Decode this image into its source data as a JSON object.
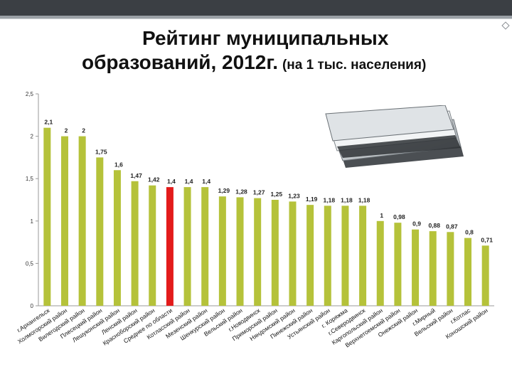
{
  "title_line1": "Рейтинг муниципальных",
  "title_line2": "образований, 2012г.",
  "subtitle": "(на 1 тыс. населения)",
  "colors": {
    "bar": "#b5c23a",
    "highlight": "#e31b1b",
    "header": "#3b3f44"
  },
  "chart_data": {
    "type": "bar",
    "title": "Рейтинг муниципальных образований, 2012г. (на 1 тыс. населения)",
    "xlabel": "",
    "ylabel": "",
    "ylim": [
      0,
      2.5
    ],
    "yticks": [
      "0",
      "0,5",
      "1",
      "1,5",
      "2",
      "2,5"
    ],
    "ytick_values": [
      0,
      0.5,
      1,
      1.5,
      2,
      2.5
    ],
    "grid": false,
    "highlight_index": 7,
    "categories": [
      "г.Архангельск",
      "Холмогорский район",
      "Вилегодский район",
      "Плесецкий район",
      "Лешуконский район",
      "Ленский район",
      "Красноборский район",
      "Среднее по области",
      "Котласский район",
      "Мезенский район",
      "Шенкурский район",
      "Вельский район",
      "г.Новодвинск",
      "Приморский район",
      "Няндомский район",
      "Пинежский район",
      "Устьянский район",
      "г. Коряжма",
      "г.Северодвинск",
      "Каргопольский район",
      "Верхнетоемский район",
      "Онежский район",
      "г.Мирный",
      "Вельский район",
      "г.Котлас",
      "Коношский район"
    ],
    "values": [
      2.1,
      2,
      2,
      1.75,
      1.6,
      1.47,
      1.42,
      1.4,
      1.4,
      1.4,
      1.29,
      1.28,
      1.27,
      1.25,
      1.23,
      1.19,
      1.18,
      1.18,
      1.18,
      1,
      0.98,
      0.9,
      0.88,
      0.87,
      0.8,
      0.71
    ],
    "value_labels": [
      "2,1",
      "2",
      "2",
      "1,75",
      "1,6",
      "1,47",
      "1,42",
      "1,4",
      "1,4",
      "1,4",
      "1,29",
      "1,28",
      "1,27",
      "1,25",
      "1,23",
      "1,19",
      "1,18",
      "1,18",
      "1,18",
      "1",
      "0,98",
      "0,9",
      "0,88",
      "0,87",
      "0,8",
      "0,71"
    ]
  }
}
